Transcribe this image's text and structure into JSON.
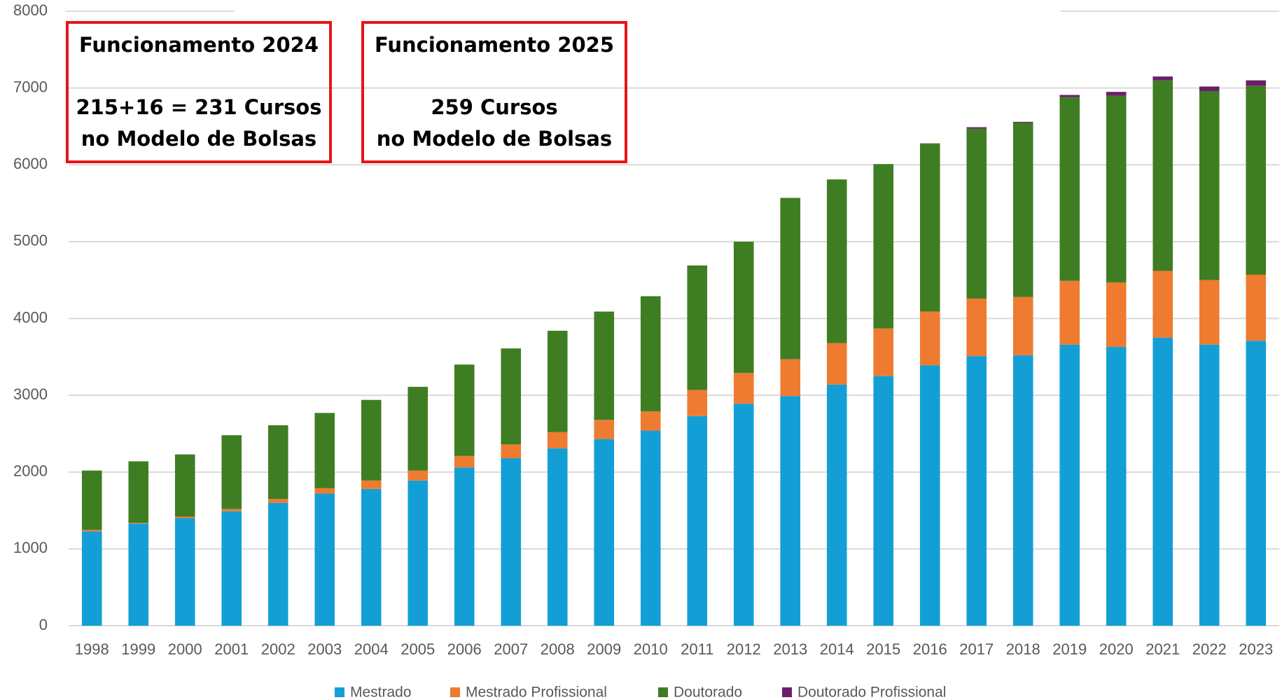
{
  "chart_data": {
    "type": "stacked_bar",
    "categories": [
      "1998",
      "1999",
      "2000",
      "2001",
      "2002",
      "2003",
      "2004",
      "2005",
      "2006",
      "2007",
      "2008",
      "2009",
      "2010",
      "2011",
      "2012",
      "2013",
      "2014",
      "2015",
      "2016",
      "2017",
      "2018",
      "2019",
      "2020",
      "2021",
      "2022",
      "2023"
    ],
    "series": [
      {
        "name": "Mestrado",
        "color": "#139fd6",
        "values": [
          1230,
          1330,
          1400,
          1490,
          1600,
          1720,
          1780,
          1890,
          2060,
          2180,
          2310,
          2430,
          2540,
          2730,
          2890,
          2990,
          3140,
          3250,
          3390,
          3510,
          3520,
          3660,
          3630,
          3750,
          3660,
          3710
        ]
      },
      {
        "name": "Mestrado Profissional",
        "color": "#ee7b30",
        "values": [
          20,
          10,
          20,
          30,
          50,
          70,
          110,
          130,
          150,
          180,
          210,
          250,
          250,
          340,
          400,
          480,
          540,
          620,
          700,
          750,
          760,
          830,
          840,
          870,
          840,
          860
        ]
      },
      {
        "name": "Doutorado",
        "color": "#3f7d22",
        "values": [
          770,
          800,
          810,
          960,
          960,
          980,
          1050,
          1090,
          1190,
          1250,
          1320,
          1410,
          1500,
          1620,
          1710,
          2100,
          2130,
          2140,
          2190,
          2210,
          2270,
          2390,
          2430,
          2480,
          2460,
          2460
        ]
      },
      {
        "name": "Doutorado Profissional",
        "color": "#6b1f6b",
        "values": [
          0,
          0,
          0,
          0,
          0,
          0,
          0,
          0,
          0,
          0,
          0,
          0,
          0,
          0,
          0,
          0,
          0,
          0,
          0,
          20,
          10,
          30,
          50,
          50,
          60,
          70
        ]
      }
    ],
    "ylim": [
      0,
      8000
    ],
    "yticks": [
      0,
      1000,
      2000,
      3000,
      4000,
      5000,
      6000,
      7000,
      8000
    ],
    "grid": true,
    "legend": "bottom",
    "annotations": [
      {
        "lines": [
          "Funcionamento 2024",
          "215+16 = 231 Cursos",
          "no Modelo de Bolsas"
        ]
      },
      {
        "lines": [
          "Funcionamento 2025",
          "259 Cursos",
          "no Modelo de Bolsas"
        ]
      }
    ]
  }
}
